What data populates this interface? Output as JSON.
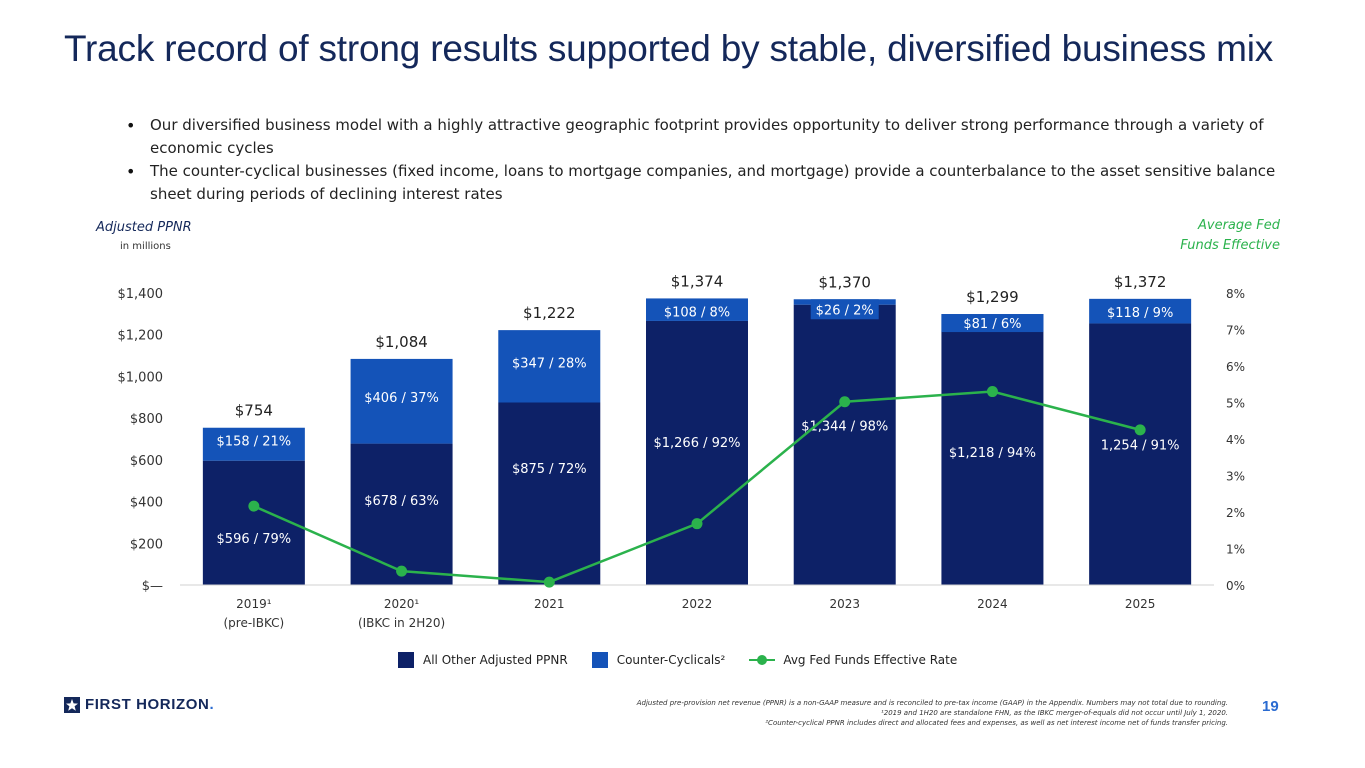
{
  "title": "Track record of strong results supported by stable, diversified business mix",
  "bullets": [
    "Our diversified business model with a highly attractive geographic footprint provides opportunity to deliver strong performance through a variety of economic cycles",
    "The counter-cyclical businesses (fixed income, loans to mortgage companies, and mortgage) provide a counterbalance to the asset sensitive balance sheet during periods of declining interest rates"
  ],
  "left_axis_title": "Adjusted PPNR",
  "left_axis_sub": "in millions",
  "right_axis_title": [
    "Average Fed",
    "Funds Effective"
  ],
  "colors": {
    "base": "#0d2167",
    "counter": "#1453b8",
    "fed": "#2bb24c",
    "title": "#14285a",
    "axis_text": "#333333"
  },
  "chart_data": {
    "type": "bar",
    "stacked": true,
    "categories": [
      [
        "2019¹",
        "(pre-IBKC)"
      ],
      [
        "2020¹",
        "(IBKC in 2H20)"
      ],
      [
        "2021"
      ],
      [
        "2022"
      ],
      [
        "2023"
      ],
      [
        "2024"
      ],
      [
        "2025"
      ]
    ],
    "series": [
      {
        "name": "All Other Adjusted PPNR",
        "values": [
          596,
          678,
          875,
          1266,
          1344,
          1218,
          1254
        ],
        "labels": [
          "$596 / 79%",
          "$678 / 63%",
          "$875 / 72%",
          "$1,266 / 92%",
          "$1,344 / 98%",
          "$1,218 / 94%",
          "1,254 / 91%"
        ]
      },
      {
        "name": "Counter-Cyclicals²",
        "values": [
          158,
          406,
          347,
          108,
          26,
          81,
          118
        ],
        "labels": [
          "$158 / 21%",
          "$406 / 37%",
          "$347 / 28%",
          "$108 / 8%",
          "$26 / 2%",
          "$81 / 6%",
          "$118 / 9%"
        ]
      }
    ],
    "totals": [
      "$754",
      "$1,084",
      "$1,222",
      "$1,374",
      "$1,370",
      "$1,299",
      "$1,372"
    ],
    "line": {
      "name": "Avg Fed Funds Effective Rate",
      "values": [
        2.16,
        0.38,
        0.08,
        1.68,
        5.02,
        5.3,
        4.25
      ]
    },
    "ylim": [
      0,
      1400
    ],
    "yticks": [
      "$—",
      "$200",
      "$400",
      "$600",
      "$800",
      "$1,000",
      "$1,200",
      "$1,400"
    ],
    "y2lim": [
      0,
      8
    ],
    "y2ticks": [
      "0%",
      "1%",
      "2%",
      "3%",
      "4%",
      "5%",
      "6%",
      "7%",
      "8%"
    ],
    "grid": false,
    "legend_position": "bottom"
  },
  "legend": [
    {
      "label": "All Other Adjusted PPNR"
    },
    {
      "label": "Counter-Cyclicals²"
    },
    {
      "label": "Avg Fed Funds Effective Rate"
    }
  ],
  "logo_text": "FIRST HORIZON",
  "logo_dot": ".",
  "footnotes": [
    "Adjusted pre-provision net revenue (PPNR) is a non-GAAP measure and is reconciled to pre-tax income (GAAP) in the Appendix. Numbers may not total due to rounding.",
    "¹2019 and 1H20 are standalone FHN, as the IBKC merger-of-equals did not occur until July 1, 2020.",
    "²Counter-cyclical PPNR includes direct and allocated fees and expenses, as well as net interest income net of funds transfer pricing."
  ],
  "page_number": "19"
}
